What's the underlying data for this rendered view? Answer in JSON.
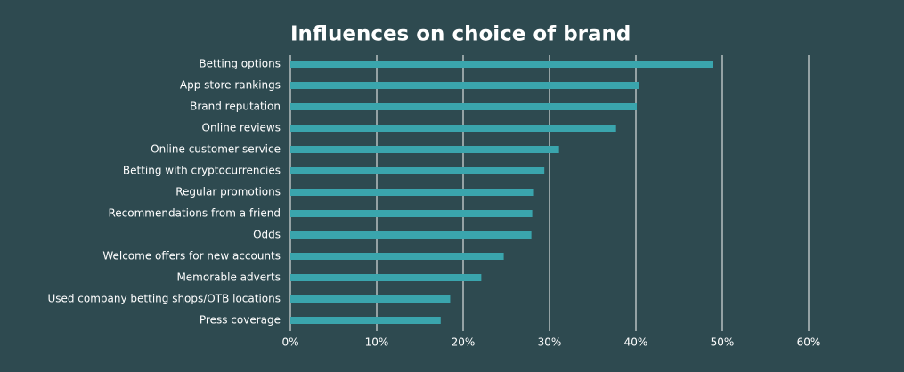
{
  "chart_data": {
    "type": "bar",
    "orientation": "horizontal",
    "title": "Influences on choice of brand",
    "categories": [
      "Betting options",
      "App store rankings",
      "Brand reputation",
      "Online reviews",
      "Online customer service",
      "Betting with cryptocurrencies",
      "Regular promotions",
      "Recommendations from a friend",
      "Odds",
      "Welcome offers for new accounts",
      "Memorable adverts",
      "Used company betting shops/OTB locations",
      "Press coverage"
    ],
    "values": [
      48.9,
      40.4,
      40.1,
      37.7,
      31.1,
      29.4,
      28.2,
      28.0,
      27.9,
      24.7,
      22.1,
      18.5,
      17.4
    ],
    "color": "#3aa5ad",
    "xlim": [
      0,
      60
    ],
    "xticks": [
      {
        "value": 0,
        "label": "0%"
      },
      {
        "value": 10,
        "label": "10%"
      },
      {
        "value": 20,
        "label": "20%"
      },
      {
        "value": 30,
        "label": "30%"
      },
      {
        "value": 40,
        "label": "40%"
      },
      {
        "value": 50,
        "label": "50%"
      },
      {
        "value": 60,
        "label": "60%"
      }
    ],
    "grid": true
  }
}
